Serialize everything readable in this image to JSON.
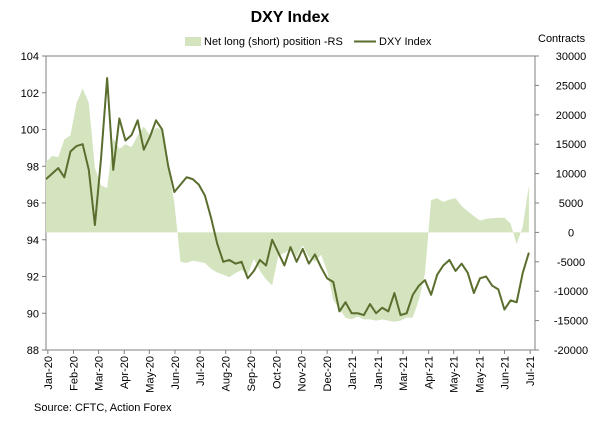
{
  "chart_data": {
    "type": "line",
    "title": "DXY Index",
    "y2_unit_label": "Contracts",
    "source": "Source: CFTC, Action Forex",
    "legend": [
      {
        "name": "Net long (short) position -RS",
        "kind": "area",
        "color": "#d4e4bf"
      },
      {
        "name": "DXY Index",
        "kind": "line",
        "color": "#5a6e2e"
      }
    ],
    "y_left": {
      "min": 88,
      "max": 104,
      "ticks": [
        88,
        90,
        92,
        94,
        96,
        98,
        100,
        102,
        104
      ]
    },
    "y_right": {
      "min": -20000,
      "max": 30000,
      "ticks": [
        -20000,
        -15000,
        -10000,
        -5000,
        0,
        5000,
        10000,
        15000,
        20000,
        25000,
        30000
      ]
    },
    "x_range": [
      0,
      80
    ],
    "x_tick_labels": [
      "Jan-20",
      "Feb-20",
      "Mar-20",
      "Apr-20",
      "May-20",
      "Jun-20",
      "Jul-20",
      "Aug-20",
      "Sep-20",
      "Oct-20",
      "Nov-20",
      "Dec-20",
      "Jan-21",
      "Jan-21",
      "Mar-21",
      "Apr-21",
      "May-21",
      "May-21",
      "Jun-21",
      "Jul-21"
    ],
    "x_tick_positions": [
      0.3,
      4.5,
      8.6,
      12.8,
      16.9,
      21.1,
      25.2,
      29.4,
      33.5,
      37.7,
      41.8,
      46.0,
      50.1,
      54.3,
      58.4,
      62.6,
      66.7,
      70.9,
      75.0,
      79.2
    ],
    "series": [
      {
        "name": "DXY Index",
        "x": [
          0,
          1,
          2,
          3,
          4,
          5,
          6,
          7,
          8,
          9,
          10,
          11,
          12,
          13,
          14,
          15,
          16,
          17,
          18,
          19,
          20,
          21,
          22,
          23,
          24,
          25,
          26,
          27,
          28,
          29,
          30,
          31,
          32,
          33,
          34,
          35,
          36,
          37,
          38,
          39,
          40,
          41,
          42,
          43,
          44,
          45,
          46,
          47,
          48,
          49,
          50,
          51,
          52,
          53,
          54,
          55,
          56,
          57,
          58,
          59,
          60,
          61,
          62,
          63,
          64,
          65,
          66,
          67,
          68,
          69,
          70,
          71,
          72,
          73,
          74,
          75,
          76,
          77,
          78,
          79
        ],
        "values": [
          97.3,
          97.6,
          97.9,
          97.4,
          98.8,
          99.1,
          99.2,
          97.8,
          94.8,
          98.4,
          102.8,
          97.8,
          100.6,
          99.4,
          99.7,
          100.5,
          98.9,
          99.6,
          100.5,
          100.0,
          98.0,
          96.6,
          97.0,
          97.4,
          97.3,
          97.0,
          96.4,
          95.2,
          93.8,
          92.8,
          92.9,
          92.7,
          92.8,
          91.9,
          92.3,
          92.9,
          92.6,
          94.0,
          93.3,
          92.6,
          93.6,
          92.8,
          93.5,
          92.7,
          93.2,
          92.5,
          91.9,
          91.7,
          90.1,
          90.6,
          90.0,
          90.0,
          89.9,
          90.5,
          90.0,
          90.3,
          90.1,
          91.1,
          89.9,
          90.0,
          91.0,
          91.5,
          91.8,
          91.0,
          92.1,
          92.6,
          92.9,
          92.3,
          92.7,
          92.2,
          91.1,
          91.9,
          92.0,
          91.5,
          91.3,
          90.2,
          90.7,
          90.6,
          92.2,
          93.3
        ]
      },
      {
        "name": "Net long (short) position -RS",
        "x": [
          0,
          1,
          2,
          3,
          4,
          5,
          6,
          7,
          8,
          9,
          10,
          11,
          12,
          13,
          14,
          15,
          16,
          17,
          18,
          19,
          20,
          21,
          22,
          23,
          24,
          25,
          26,
          27,
          28,
          29,
          30,
          31,
          32,
          33,
          34,
          35,
          36,
          37,
          38,
          39,
          40,
          41,
          42,
          43,
          44,
          45,
          46,
          47,
          48,
          49,
          50,
          51,
          52,
          53,
          54,
          55,
          56,
          57,
          58,
          59,
          60,
          61,
          62,
          63,
          64,
          65,
          66,
          67,
          68,
          69,
          70,
          71,
          72,
          73,
          74,
          75,
          76,
          77,
          78,
          79
        ],
        "values": [
          12000,
          13000,
          12800,
          15800,
          16500,
          22000,
          24500,
          22000,
          11000,
          8000,
          7500,
          16000,
          14200,
          15000,
          14500,
          16500,
          18000,
          16500,
          17800,
          17500,
          11000,
          5000,
          -5000,
          -5200,
          -4800,
          -5000,
          -5200,
          -6200,
          -6800,
          -7200,
          -7600,
          -6900,
          -6400,
          -7200,
          -4500,
          -6500,
          -8000,
          -9000,
          -4000,
          -3500,
          -2800,
          -4200,
          -2200,
          -4200,
          -5000,
          -3800,
          -6600,
          -11500,
          -13000,
          -14500,
          -14800,
          -14300,
          -14800,
          -14800,
          -15000,
          -14800,
          -15000,
          -15200,
          -15000,
          -14500,
          -14500,
          -11500,
          -7000,
          5500,
          5800,
          5200,
          5600,
          5800,
          4500,
          3600,
          2800,
          2000,
          2300,
          2400,
          2500,
          2500,
          1500,
          -2000,
          1000,
          8000
        ]
      }
    ]
  }
}
